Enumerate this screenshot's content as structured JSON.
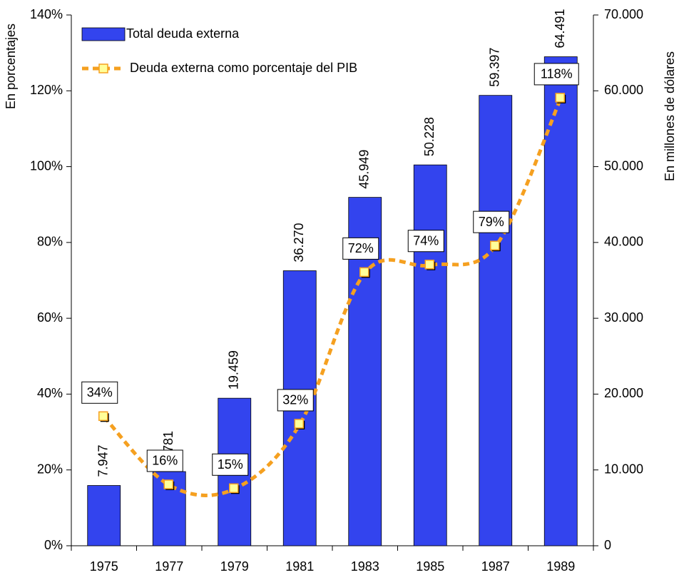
{
  "chart_data": {
    "type": "bar",
    "categories": [
      "1975",
      "1977",
      "1979",
      "1981",
      "1983",
      "1985",
      "1987",
      "1989"
    ],
    "y_label": "En porcentajes",
    "y2_label": "En millones de dólares",
    "ylim": [
      0,
      140
    ],
    "yticks": [
      {
        "value": 0,
        "label": "0%"
      },
      {
        "value": 20,
        "label": "20%"
      },
      {
        "value": 40,
        "label": "40%"
      },
      {
        "value": 60,
        "label": "60%"
      },
      {
        "value": 80,
        "label": "80%"
      },
      {
        "value": 100,
        "label": "100%"
      },
      {
        "value": 120,
        "label": "120%"
      },
      {
        "value": 140,
        "label": "140%"
      }
    ],
    "y2lim": [
      0,
      70000
    ],
    "y2ticks": [
      0,
      {
        "value": 10000,
        "label": "10.000"
      },
      {
        "value": 20000,
        "label": "20.000"
      },
      {
        "value": 30000,
        "label": "30.000"
      },
      {
        "value": 40000,
        "label": "40.000"
      },
      {
        "value": 50000,
        "label": "50.000"
      },
      {
        "value": 60000,
        "label": "60.000"
      },
      {
        "value": 70000,
        "label": "70.000"
      }
    ],
    "legend": "upper left",
    "series": [
      {
        "name": "Total deuda externa",
        "type": "bar",
        "axis": "y2",
        "color": "#3344ee",
        "values": [
          7947,
          9781,
          19459,
          36270,
          45949,
          50228,
          59397,
          64491
        ],
        "value_labels": [
          "7.947",
          "9.781",
          "19.459",
          "36.270",
          "45.949",
          "50.228",
          "59.397",
          "64.491"
        ]
      },
      {
        "name": "Deuda externa como porcentaje del PIB",
        "type": "line",
        "color": "#f5a020",
        "values": [
          34,
          16,
          15,
          32,
          72,
          74,
          79,
          118
        ],
        "value_labels": [
          "34%",
          "16%",
          "15%",
          "32%",
          "72%",
          "74%",
          "79%",
          "118%"
        ]
      }
    ]
  }
}
